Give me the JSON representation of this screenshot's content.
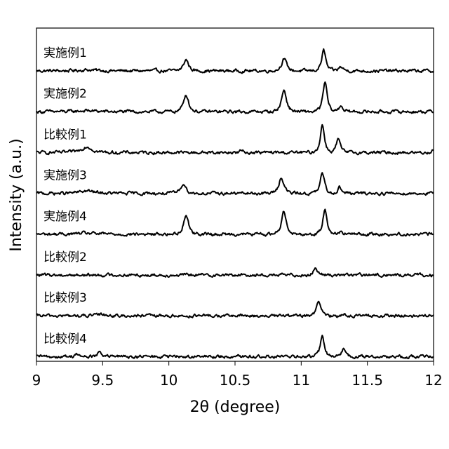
{
  "chart_data": {
    "type": "line",
    "xlabel": "2θ (degree)",
    "ylabel": "Intensity (a.u.)",
    "xlim": [
      9,
      12
    ],
    "x_ticks": [
      9,
      9.5,
      10,
      10.5,
      11,
      11.5,
      12
    ],
    "x_tick_labels": [
      "9",
      "9.5",
      "10",
      "10.5",
      "11",
      "11.5",
      "12"
    ],
    "y_ticks": "none",
    "grid": false,
    "legend": "inline labels above each trace",
    "stacked_offset": true,
    "series": [
      {
        "name": "実施例1",
        "peaks": [
          [
            9.38,
            0.05,
            0.1
          ],
          [
            10.13,
            0.55,
            0.03
          ],
          [
            10.87,
            0.6,
            0.03
          ],
          [
            11.17,
            1.0,
            0.025
          ],
          [
            11.3,
            0.2,
            0.025
          ]
        ]
      },
      {
        "name": "実施例2",
        "peaks": [
          [
            9.38,
            0.05,
            0.1
          ],
          [
            10.13,
            0.85,
            0.03
          ],
          [
            10.87,
            1.05,
            0.03
          ],
          [
            11.18,
            1.45,
            0.025
          ],
          [
            11.3,
            0.3,
            0.025
          ]
        ]
      },
      {
        "name": "比較例1",
        "peaks": [
          [
            9.38,
            0.3,
            0.06
          ],
          [
            10.55,
            0.1,
            0.02
          ],
          [
            11.16,
            1.35,
            0.025
          ],
          [
            11.28,
            0.65,
            0.025
          ],
          [
            12.0,
            0.15,
            0.02
          ]
        ]
      },
      {
        "name": "実施例3",
        "peaks": [
          [
            9.38,
            0.12,
            0.08
          ],
          [
            10.11,
            0.5,
            0.03
          ],
          [
            10.85,
            0.8,
            0.03
          ],
          [
            11.16,
            1.0,
            0.025
          ],
          [
            11.29,
            0.3,
            0.025
          ]
        ]
      },
      {
        "name": "実施例4",
        "peaks": [
          [
            9.38,
            0.05,
            0.1
          ],
          [
            10.13,
            0.95,
            0.03
          ],
          [
            10.87,
            1.1,
            0.03
          ],
          [
            11.18,
            1.25,
            0.025
          ],
          [
            11.3,
            0.15,
            0.025
          ]
        ]
      },
      {
        "name": "比較例2",
        "peaks": [
          [
            11.11,
            0.35,
            0.025
          ]
        ]
      },
      {
        "name": "比較例3",
        "peaks": [
          [
            9.5,
            0.08,
            0.05
          ],
          [
            11.13,
            0.75,
            0.025
          ],
          [
            11.32,
            0.1,
            0.025
          ]
        ]
      },
      {
        "name": "比較例4",
        "peaks": [
          [
            9.3,
            0.15,
            0.02
          ],
          [
            9.48,
            0.2,
            0.03
          ],
          [
            10.52,
            0.12,
            0.02
          ],
          [
            11.16,
            1.0,
            0.025
          ],
          [
            11.32,
            0.35,
            0.025
          ]
        ]
      }
    ]
  }
}
